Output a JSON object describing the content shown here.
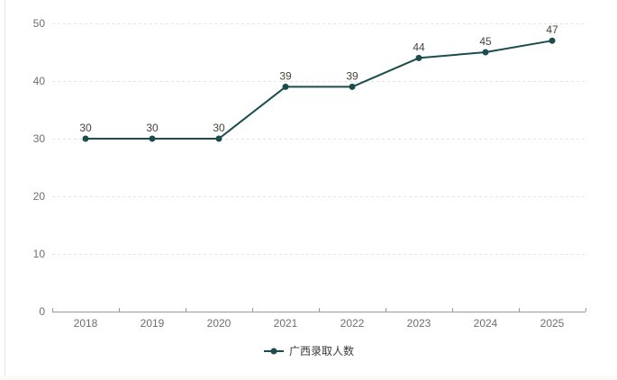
{
  "chart": {
    "legend": {
      "label": "广西录取人数"
    },
    "colors": {
      "line": "#1b4d4d",
      "grid": "#e4e4e4",
      "axis": "#9b9b9b",
      "axis_label": "#6e6e76",
      "data_label": "#49433b",
      "legend_text": "#3a3a3a"
    }
  },
  "chart_data": {
    "type": "line",
    "categories": [
      "2018",
      "2019",
      "2020",
      "2021",
      "2022",
      "2023",
      "2024",
      "2025"
    ],
    "series": [
      {
        "name": "广西录取人数",
        "values": [
          30,
          30,
          30,
          39,
          39,
          44,
          45,
          47
        ]
      }
    ],
    "title": "",
    "xlabel": "",
    "ylabel": "",
    "ylim": [
      0,
      50
    ],
    "yticks": [
      0,
      10,
      20,
      30,
      40,
      50
    ],
    "grid": "horizontal-dashed",
    "legend_position": "bottom",
    "data_labels": true
  }
}
